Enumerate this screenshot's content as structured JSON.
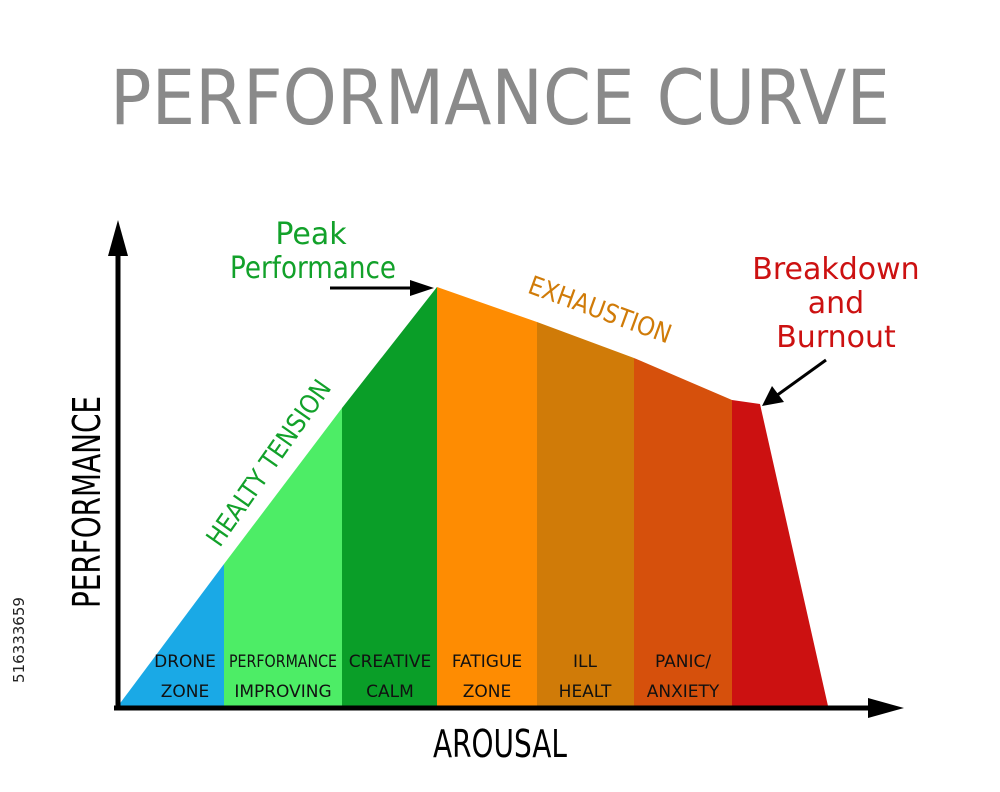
{
  "title": "PERFORMANCE CURVE",
  "y_axis_label": "PERFORMANCE",
  "x_axis_label": "AROUSAL",
  "image_id": "516333659",
  "annotations": {
    "peak_line1": "Peak",
    "peak_line2": "Performance",
    "exhaustion": "EXHAUSTION",
    "healthy_tension": "HEALTY TENSION",
    "breakdown_line1": "Breakdown",
    "breakdown_line2": "and",
    "breakdown_line3": "Burnout"
  },
  "zones": [
    {
      "line1": "DRONE",
      "line2": "ZONE",
      "color": "#1aa9e6"
    },
    {
      "line1": "PERFORMANCE",
      "line2": "IMPROVING",
      "color": "#4ded66"
    },
    {
      "line1": "CREATIVE",
      "line2": "CALM",
      "color": "#0a9e28"
    },
    {
      "line1": "FATIGUE",
      "line2": "ZONE",
      "color": "#fe8c02"
    },
    {
      "line1": "ILL",
      "line2": "HEALT",
      "color": "#d07b08"
    },
    {
      "line1": "PANIC/",
      "line2": "ANXIETY",
      "color": "#d6500c"
    },
    {
      "line1": "",
      "line2": "",
      "color": "#cc1111"
    }
  ],
  "colors": {
    "title": "#8a8a8a",
    "green_text": "#12a12a",
    "orange_text": "#d07b08",
    "red_text": "#cc1111",
    "axis": "#000000"
  }
}
